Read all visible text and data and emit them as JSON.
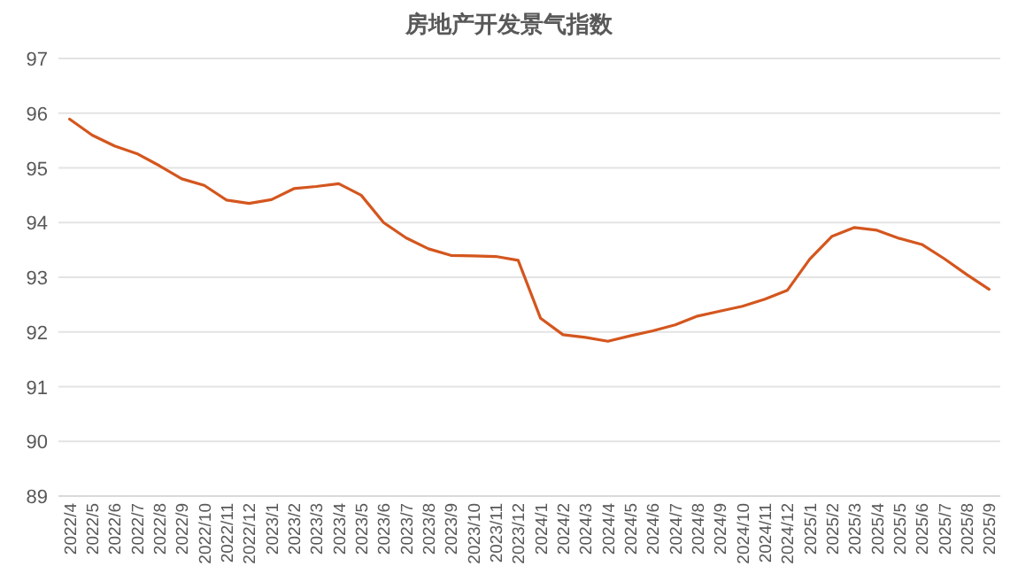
{
  "chart_data": {
    "type": "line",
    "title": "房地产开发景气指数",
    "categories": [
      "2022/4",
      "2022/5",
      "2022/6",
      "2022/7",
      "2022/8",
      "2022/9",
      "2022/10",
      "2022/11",
      "2022/12",
      "2023/1",
      "2023/2",
      "2023/3",
      "2023/4",
      "2023/5",
      "2023/6",
      "2023/7",
      "2023/8",
      "2023/9",
      "2023/10",
      "2023/11",
      "2023/12",
      "2024/1",
      "2024/2",
      "2024/3",
      "2024/4",
      "2024/5",
      "2024/6",
      "2024/7",
      "2024/8",
      "2024/9",
      "2024/10",
      "2024/11",
      "2024/12",
      "2025/1",
      "2025/2",
      "2025/3",
      "2025/4",
      "2025/5",
      "2025/6",
      "2025/7",
      "2025/8",
      "2025/9"
    ],
    "series": [
      {
        "color": "#d4561e",
        "values": [
          95.89,
          95.6,
          95.4,
          95.26,
          95.04,
          94.8,
          94.68,
          94.41,
          94.35,
          94.42,
          94.62,
          94.66,
          94.71,
          94.5,
          94.0,
          93.72,
          93.52,
          93.4,
          93.39,
          93.38,
          93.31,
          92.25,
          91.95,
          91.9,
          91.83,
          91.93,
          92.02,
          92.13,
          92.29,
          92.38,
          92.47,
          92.6,
          92.76,
          93.33,
          93.75,
          93.91,
          93.86,
          93.71,
          93.6,
          93.34,
          93.05,
          92.78
        ]
      }
    ],
    "ylim": [
      89,
      97
    ],
    "yticks": [
      89,
      90,
      91,
      92,
      93,
      94,
      95,
      96,
      97
    ],
    "grid": "y",
    "marker": "none",
    "line_style": "solid"
  }
}
